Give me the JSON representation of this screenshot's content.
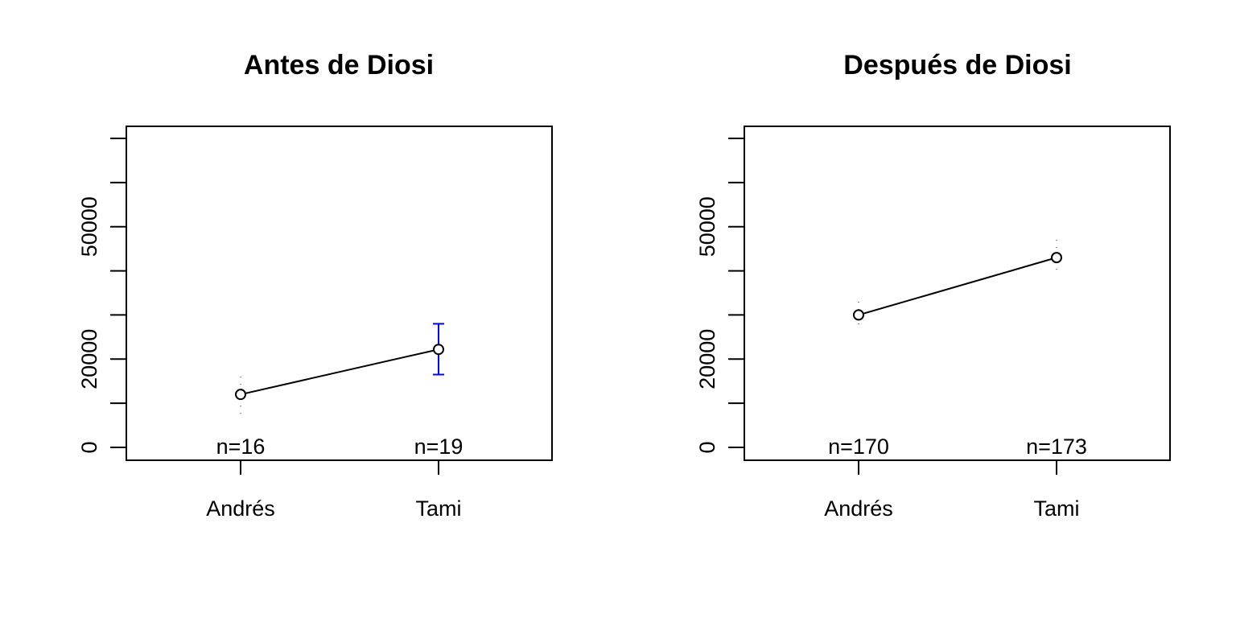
{
  "chart_data": [
    {
      "type": "line",
      "title": "Antes de Diosi",
      "xlabel": "",
      "ylabel": "",
      "categories": [
        "Andrés",
        "Tami"
      ],
      "n_labels": [
        "n=16",
        "n=19"
      ],
      "series": [
        {
          "values": [
            12000,
            22200
          ],
          "ci_lower": [
            7500,
            16500
          ],
          "ci_upper": [
            16000,
            28000
          ],
          "ci_color": [
            "#000000",
            "#0000ff"
          ]
        }
      ],
      "ylim": [
        0,
        70000
      ],
      "yticks": [
        0,
        10000,
        20000,
        30000,
        40000,
        50000,
        60000,
        70000
      ],
      "ytick_labels": [
        "0",
        "",
        "20000",
        "",
        "",
        "50000",
        "",
        ""
      ],
      "grid": false
    },
    {
      "type": "line",
      "title": "Después de Diosi",
      "xlabel": "",
      "ylabel": "",
      "categories": [
        "Andrés",
        "Tami"
      ],
      "n_labels": [
        "n=170",
        "n=173"
      ],
      "series": [
        {
          "values": [
            30000,
            43000
          ],
          "ci_lower": [
            26500,
            39000
          ],
          "ci_upper": [
            33000,
            47000
          ],
          "ci_color": [
            "#000000",
            "#000000"
          ]
        }
      ],
      "ylim": [
        0,
        70000
      ],
      "yticks": [
        0,
        10000,
        20000,
        30000,
        40000,
        50000,
        60000,
        70000
      ],
      "ytick_labels": [
        "0",
        "",
        "20000",
        "",
        "",
        "50000",
        "",
        ""
      ],
      "grid": false
    }
  ]
}
